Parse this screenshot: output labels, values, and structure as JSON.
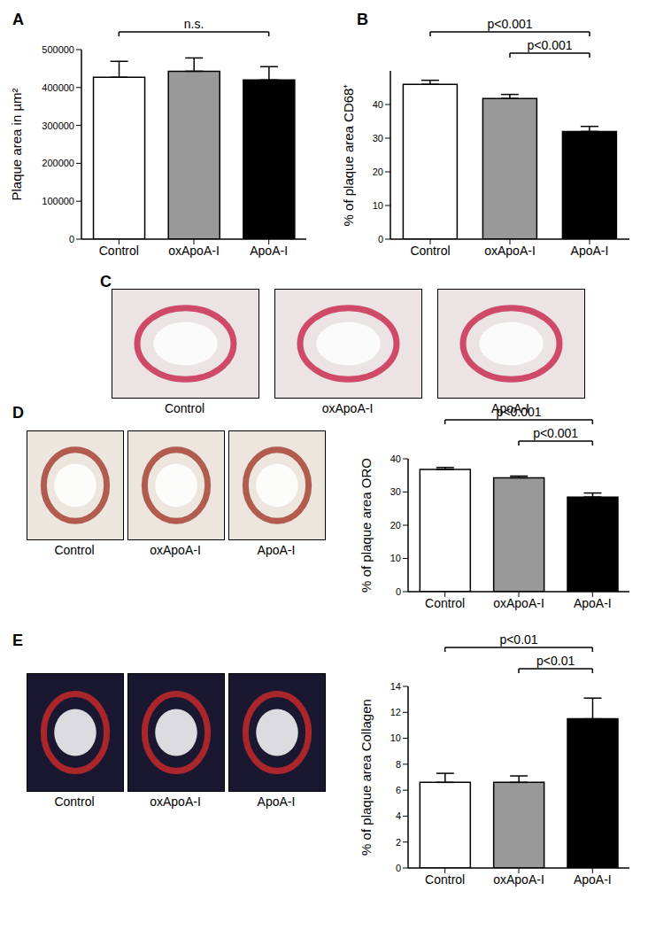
{
  "chart_data": [
    {
      "type": "bar",
      "title": "A",
      "y_label": "Plaque area in µm²",
      "categories": [
        "Control",
        "oxApoA-I",
        "ApoA-I"
      ],
      "values": [
        427000,
        443000,
        420000
      ],
      "errors": [
        42000,
        35000,
        35000
      ],
      "colors": [
        "#ffffff",
        "#999999",
        "#000000"
      ],
      "ylim": [
        0,
        500000
      ],
      "yticks": [
        0,
        100000,
        200000,
        300000,
        400000,
        500000
      ],
      "annotations": [
        {
          "from": "Control",
          "to": "ApoA-I",
          "text": "n.s."
        }
      ]
    },
    {
      "type": "bar",
      "title": "B",
      "y_label": "% of plaque area CD68⁺",
      "categories": [
        "Control",
        "oxApoA-I",
        "ApoA-I"
      ],
      "values": [
        46,
        41.8,
        32
      ],
      "errors": [
        1.2,
        1.2,
        1.5
      ],
      "colors": [
        "#ffffff",
        "#999999",
        "#000000"
      ],
      "ylim": [
        0,
        50
      ],
      "yticks": [
        0,
        10,
        20,
        30,
        40
      ],
      "annotations": [
        {
          "from": "Control",
          "to": "ApoA-I",
          "text": "p<0.001"
        },
        {
          "from": "oxApoA-I",
          "to": "ApoA-I",
          "text": "p<0.001"
        }
      ]
    },
    {
      "type": "bar",
      "title": "D",
      "y_label": "% of plaque area ORO",
      "categories": [
        "Control",
        "oxApoA-I",
        "ApoA-I"
      ],
      "values": [
        36.8,
        34.3,
        28.5
      ],
      "errors": [
        0.6,
        0.5,
        1.2
      ],
      "colors": [
        "#ffffff",
        "#999999",
        "#000000"
      ],
      "ylim": [
        0,
        40
      ],
      "yticks": [
        0,
        10,
        20,
        30,
        40
      ],
      "annotations": [
        {
          "from": "Control",
          "to": "ApoA-I",
          "text": "p<0.001"
        },
        {
          "from": "oxApoA-I",
          "to": "ApoA-I",
          "text": "p<0.001"
        }
      ]
    },
    {
      "type": "bar",
      "title": "E",
      "y_label": "% of plaque area Collagen",
      "categories": [
        "Control",
        "oxApoA-I",
        "ApoA-I"
      ],
      "values": [
        6.6,
        6.6,
        11.5
      ],
      "errors": [
        0.7,
        0.5,
        1.6
      ],
      "colors": [
        "#ffffff",
        "#999999",
        "#000000"
      ],
      "ylim": [
        0,
        14
      ],
      "yticks": [
        0,
        2,
        4,
        6,
        8,
        10,
        12,
        14
      ],
      "annotations": [
        {
          "from": "Control",
          "to": "ApoA-I",
          "text": "p<0.01"
        },
        {
          "from": "oxApoA-I",
          "to": "ApoA-I",
          "text": "p<0.01"
        }
      ]
    }
  ],
  "images": [
    {
      "title": "C",
      "captions": [
        "Control",
        "oxApoA-I",
        "ApoA-I"
      ]
    },
    {
      "captions": [
        "Control",
        "oxApoA-I",
        "ApoA-I"
      ]
    },
    {
      "captions": [
        "Control",
        "oxApoA-I",
        "ApoA-I"
      ]
    }
  ]
}
